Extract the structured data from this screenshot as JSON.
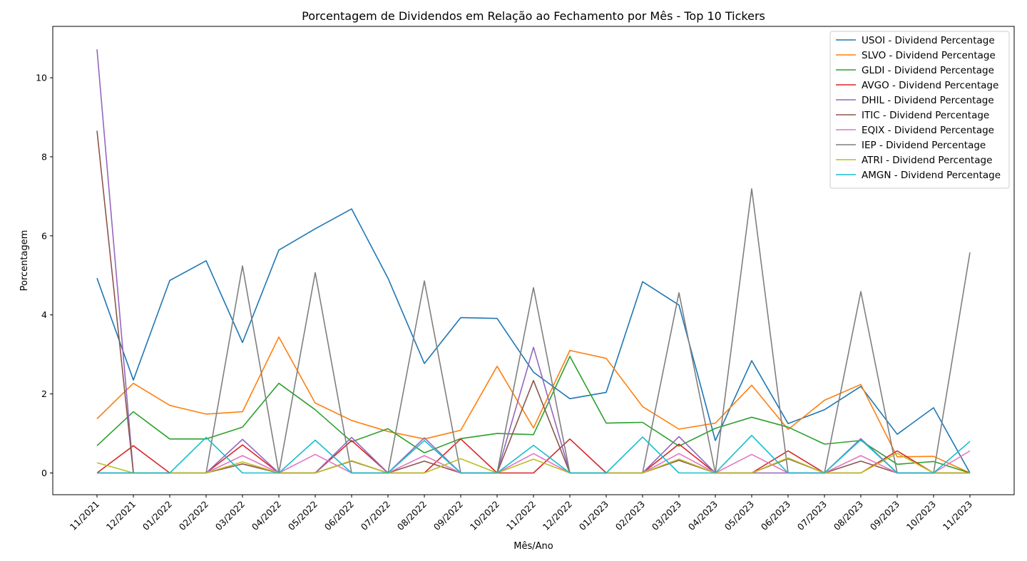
{
  "chart_data": {
    "type": "line",
    "title": "Porcentagem de Dividendos em Relação ao Fechamento por Mês - Top 10 Tickers",
    "xlabel": "Mês/Ano",
    "ylabel": "Porcentagem",
    "ylim": [
      -0.55,
      11.3
    ],
    "yticks": [
      0,
      2,
      4,
      6,
      8,
      10
    ],
    "grid": false,
    "legend_position": "top-right",
    "x": [
      "11/2021",
      "12/2021",
      "01/2022",
      "02/2022",
      "03/2022",
      "04/2022",
      "05/2022",
      "06/2022",
      "07/2022",
      "08/2022",
      "09/2022",
      "10/2022",
      "11/2022",
      "12/2022",
      "01/2023",
      "02/2023",
      "03/2023",
      "04/2023",
      "05/2023",
      "06/2023",
      "07/2023",
      "08/2023",
      "09/2023",
      "10/2023",
      "11/2023"
    ],
    "series": [
      {
        "name": "USOI - Dividend Percentage",
        "color": "#1f77b4",
        "values": [
          4.93,
          2.35,
          4.87,
          5.37,
          3.3,
          5.64,
          6.18,
          6.68,
          4.93,
          2.77,
          3.93,
          3.91,
          2.55,
          1.88,
          2.04,
          4.84,
          4.25,
          0.82,
          2.84,
          1.25,
          1.6,
          2.19,
          0.98,
          1.65,
          0
        ]
      },
      {
        "name": "SLVO - Dividend Percentage",
        "color": "#ff7f0e",
        "values": [
          1.37,
          2.27,
          1.71,
          1.49,
          1.55,
          3.44,
          1.77,
          1.33,
          1.05,
          0.86,
          1.08,
          2.7,
          1.14,
          3.1,
          2.9,
          1.68,
          1.11,
          1.26,
          2.22,
          1.1,
          1.84,
          2.24,
          0.41,
          0.42,
          0
        ]
      },
      {
        "name": "GLDI - Dividend Percentage",
        "color": "#2ca02c",
        "values": [
          0.69,
          1.55,
          0.86,
          0.86,
          1.16,
          2.27,
          1.6,
          0.79,
          1.12,
          0.51,
          0.87,
          1.0,
          0.97,
          2.95,
          1.26,
          1.28,
          0.68,
          1.13,
          1.41,
          1.16,
          0.73,
          0.82,
          0.22,
          0.29,
          0
        ]
      },
      {
        "name": "AVGO - Dividend Percentage",
        "color": "#d62728",
        "values": [
          0,
          0.69,
          0,
          0,
          0.71,
          0,
          0,
          0.82,
          0,
          0,
          0.86,
          0,
          0,
          0.86,
          0,
          0,
          0.73,
          0,
          0,
          0.56,
          0,
          0,
          0.56,
          0,
          0
        ]
      },
      {
        "name": "DHIL - Dividend Percentage",
        "color": "#9467bd",
        "values": [
          10.72,
          0,
          0,
          0,
          0.85,
          0,
          0,
          0.9,
          0,
          0.89,
          0,
          0,
          3.18,
          0,
          0,
          0,
          0.92,
          0,
          0,
          0,
          0,
          0.87,
          0,
          0,
          0
        ]
      },
      {
        "name": "ITIC - Dividend Percentage",
        "color": "#8c564b",
        "values": [
          8.66,
          0,
          0,
          0,
          0.23,
          0,
          0,
          0.3,
          0,
          0.3,
          0,
          0,
          2.34,
          0,
          0,
          0,
          0.32,
          0,
          0,
          0.36,
          0,
          0.3,
          0,
          0,
          0
        ]
      },
      {
        "name": "EQIX - Dividend Percentage",
        "color": "#e377c2",
        "values": [
          0,
          0,
          0,
          0,
          0.44,
          0,
          0.47,
          0,
          0,
          0.44,
          0,
          0,
          0.49,
          0,
          0,
          0,
          0.49,
          0,
          0.47,
          0,
          0,
          0.44,
          0,
          0,
          0.56
        ]
      },
      {
        "name": "IEP - Dividend Percentage",
        "color": "#7f7f7f",
        "values": [
          0,
          0,
          0,
          0,
          5.24,
          0,
          5.07,
          0,
          0,
          4.86,
          0,
          0,
          4.69,
          0,
          0,
          0,
          4.56,
          0,
          7.19,
          0,
          0,
          4.59,
          0,
          0,
          5.58
        ]
      },
      {
        "name": "ATRI - Dividend Percentage",
        "color": "#bcbd22",
        "values": [
          0.26,
          0,
          0,
          0,
          0.28,
          0,
          0,
          0.31,
          0,
          0,
          0.36,
          0,
          0.35,
          0,
          0,
          0,
          0.35,
          0,
          0,
          0.38,
          0,
          0,
          0.5,
          0,
          0
        ]
      },
      {
        "name": "AMGN - Dividend Percentage",
        "color": "#17becf",
        "values": [
          0,
          0,
          0,
          0.9,
          0,
          0,
          0.83,
          0,
          0,
          0.82,
          0,
          0,
          0.7,
          0,
          0,
          0.91,
          0,
          0,
          0.95,
          0,
          0,
          0.84,
          0,
          0,
          0.8
        ]
      }
    ]
  }
}
